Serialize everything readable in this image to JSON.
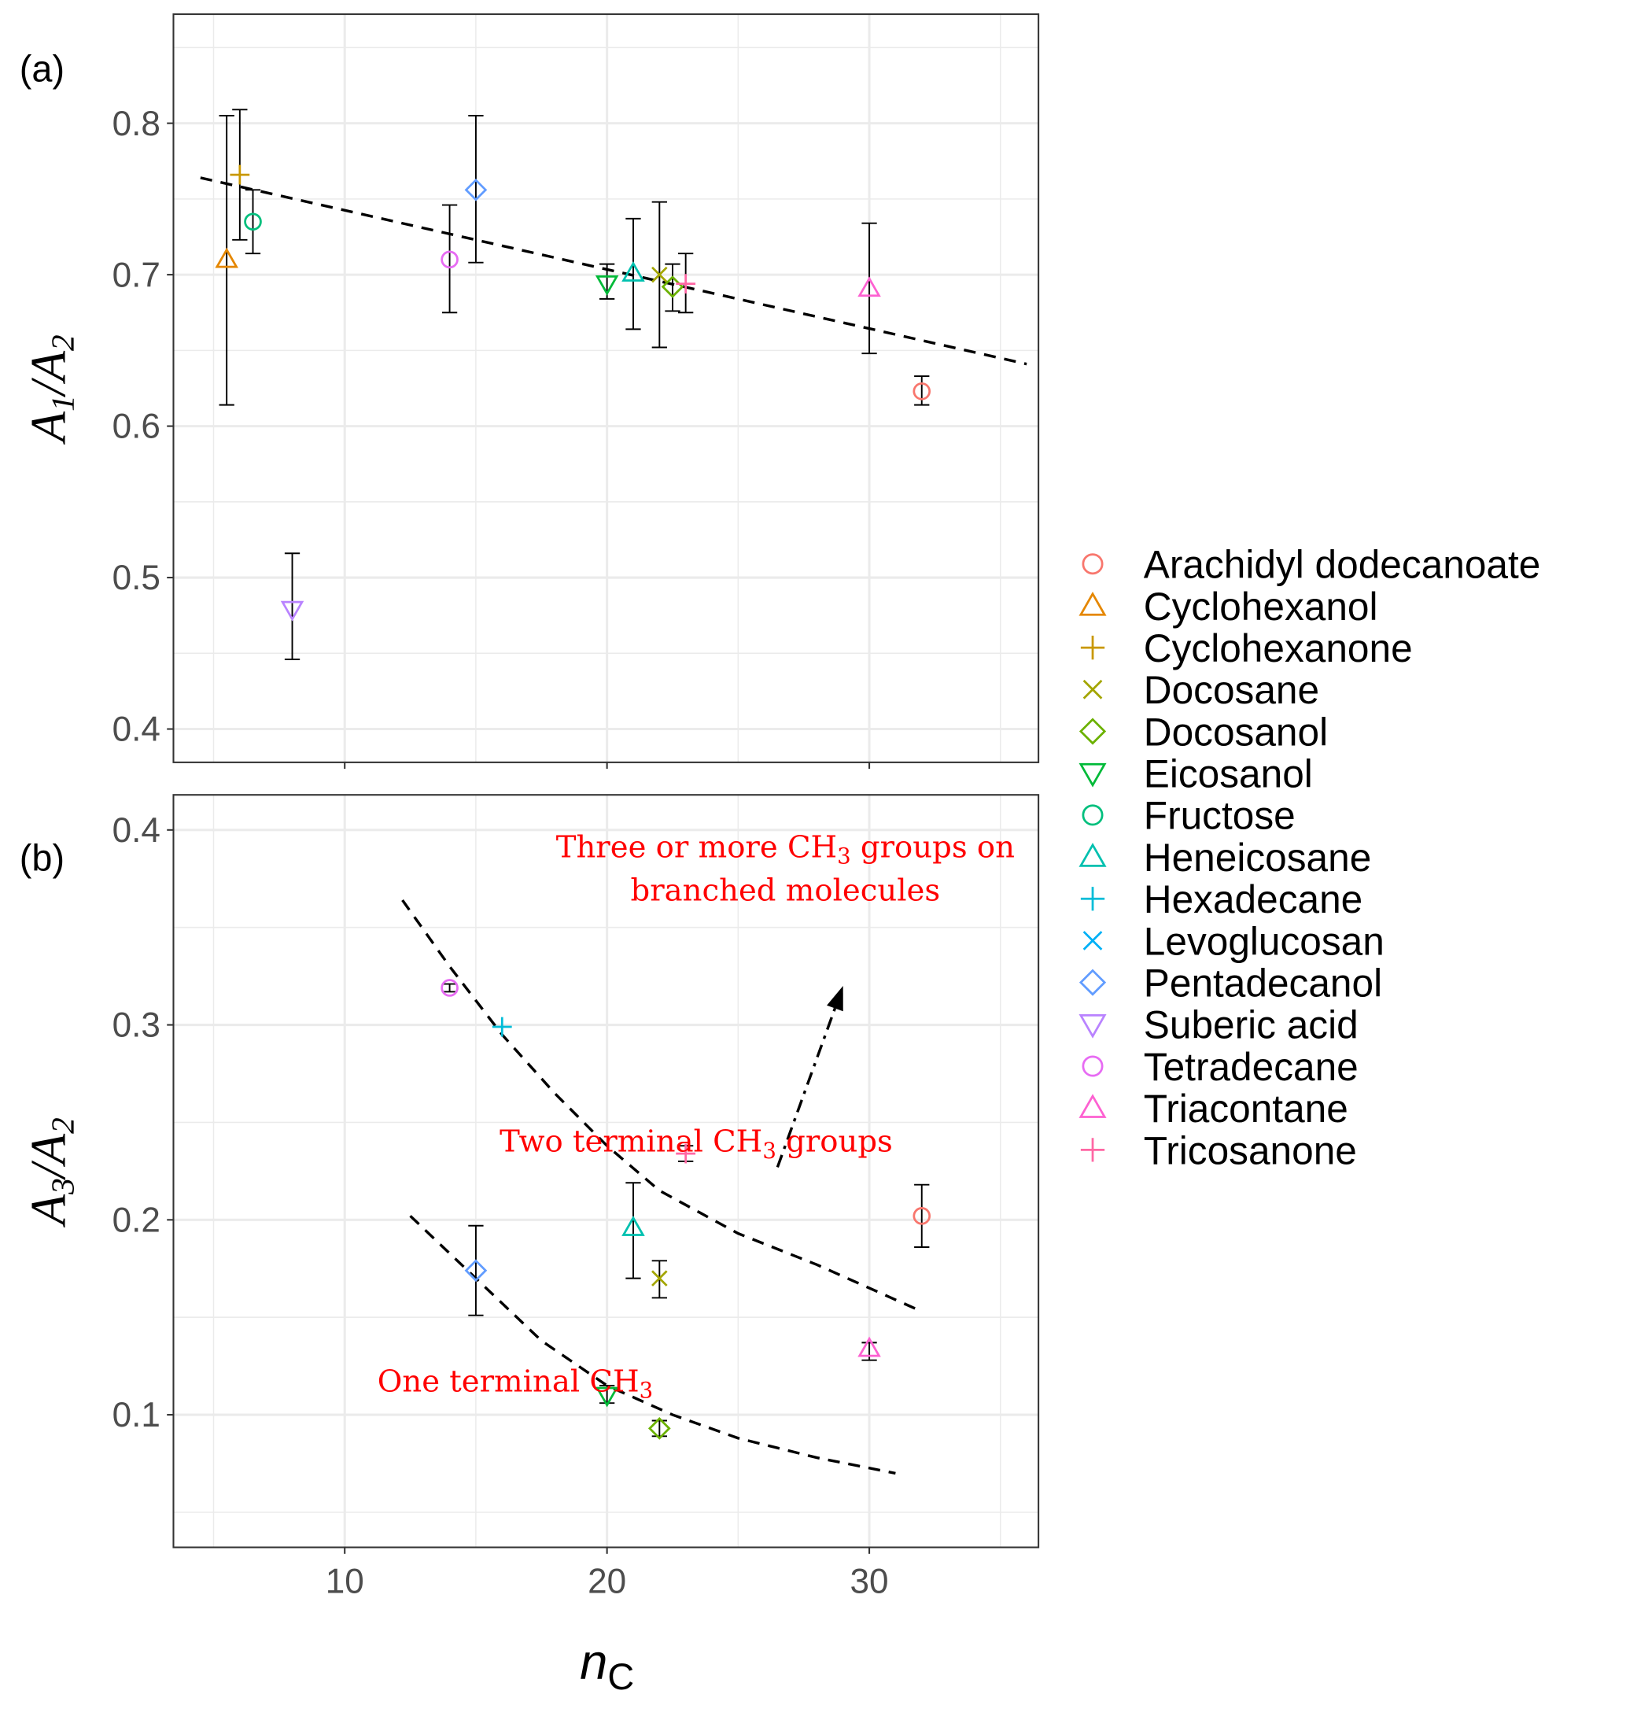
{
  "chart_data": {
    "type": "scatter",
    "xlabel": "nC",
    "xlim": [
      3.47,
      36.45
    ],
    "xticks": [
      10,
      20,
      30
    ],
    "grid": true,
    "legend_position": "right",
    "series": [
      {
        "name": "Arachidyl dodecanoate",
        "color": "#F8766D",
        "shape": "circle"
      },
      {
        "name": "Cyclohexanol",
        "color": "#E58700",
        "shape": "triangle"
      },
      {
        "name": "Cyclohexanone",
        "color": "#C99800",
        "shape": "plus"
      },
      {
        "name": "Docosane",
        "color": "#A3A500",
        "shape": "cross"
      },
      {
        "name": "Docosanol",
        "color": "#6BB100",
        "shape": "diamond"
      },
      {
        "name": "Eicosanol",
        "color": "#00BA38",
        "shape": "triangle-down"
      },
      {
        "name": "Fructose",
        "color": "#00BF7D",
        "shape": "circle"
      },
      {
        "name": "Heneicosane",
        "color": "#00C0AF",
        "shape": "triangle"
      },
      {
        "name": "Hexadecane",
        "color": "#00BCD8",
        "shape": "plus"
      },
      {
        "name": "Levoglucosan",
        "color": "#00B0F6",
        "shape": "cross"
      },
      {
        "name": "Pentadecanol",
        "color": "#619CFF",
        "shape": "diamond"
      },
      {
        "name": "Suberic acid",
        "color": "#B983FF",
        "shape": "triangle-down"
      },
      {
        "name": "Tetradecane",
        "color": "#E76BF3",
        "shape": "circle"
      },
      {
        "name": "Triacontane",
        "color": "#FD61D1",
        "shape": "triangle"
      },
      {
        "name": "Tricosanone",
        "color": "#FF67A4",
        "shape": "plus"
      }
    ],
    "panels": [
      {
        "label": "(a)",
        "ylabel": {
          "a": "A",
          "s1": "1",
          "b": "A",
          "s2": "2"
        },
        "ylim": [
          0.378,
          0.872
        ],
        "yticks": [
          0.4,
          0.5,
          0.6,
          0.7,
          0.8
        ],
        "ytick_labels": [
          "0.4",
          "0.5",
          "0.6",
          "0.7",
          "0.8"
        ],
        "points": [
          {
            "series": "Arachidyl dodecanoate",
            "x": 32,
            "y": 0.623,
            "ymin": 0.614,
            "ymax": 0.633
          },
          {
            "series": "Cyclohexanol",
            "x": 5.5,
            "y": 0.71,
            "ymin": 0.614,
            "ymax": 0.805
          },
          {
            "series": "Cyclohexanone",
            "x": 6,
            "y": 0.766,
            "ymin": 0.723,
            "ymax": 0.809
          },
          {
            "series": "Docosane",
            "x": 22,
            "y": 0.7,
            "ymin": 0.652,
            "ymax": 0.748
          },
          {
            "series": "Docosanol",
            "x": 22.5,
            "y": 0.692,
            "ymin": 0.676,
            "ymax": 0.707
          },
          {
            "series": "Eicosanol",
            "x": 20,
            "y": 0.694,
            "ymin": 0.684,
            "ymax": 0.707
          },
          {
            "series": "Fructose",
            "x": 6.5,
            "y": 0.735,
            "ymin": 0.714,
            "ymax": 0.756
          },
          {
            "series": "Heneicosane",
            "x": 21,
            "y": 0.701,
            "ymin": 0.664,
            "ymax": 0.737
          },
          {
            "series": "Pentadecanol",
            "x": 15,
            "y": 0.756,
            "ymin": 0.708,
            "ymax": 0.805
          },
          {
            "series": "Suberic acid",
            "x": 8,
            "y": 0.479,
            "ymin": 0.446,
            "ymax": 0.516
          },
          {
            "series": "Tetradecane",
            "x": 14,
            "y": 0.71,
            "ymin": 0.675,
            "ymax": 0.746
          },
          {
            "series": "Triacontane",
            "x": 30,
            "y": 0.691,
            "ymin": 0.648,
            "ymax": 0.734
          },
          {
            "series": "Tricosanone",
            "x": 23,
            "y": 0.694,
            "ymin": 0.675,
            "ymax": 0.714
          }
        ],
        "lines": [
          {
            "name": "linear-trend",
            "style": "dashed",
            "x": [
              4.5,
              36
            ],
            "y": [
              0.764,
              0.641
            ]
          }
        ],
        "annotations": []
      },
      {
        "label": "(b)",
        "ylabel": {
          "a": "A",
          "s1": "3",
          "b": "A",
          "s2": "2"
        },
        "ylim": [
          0.032,
          0.418
        ],
        "yticks": [
          0.1,
          0.2,
          0.3,
          0.4
        ],
        "ytick_labels": [
          "0.1",
          "0.2",
          "0.3",
          "0.4"
        ],
        "points": [
          {
            "series": "Tetradecane",
            "x": 14,
            "y": 0.319,
            "ymin": 0.317,
            "ymax": 0.321
          },
          {
            "series": "Hexadecane",
            "x": 16,
            "y": 0.299
          },
          {
            "series": "Tricosanone",
            "x": 23,
            "y": 0.234,
            "ymin": 0.23,
            "ymax": 0.238
          },
          {
            "series": "Heneicosane",
            "x": 21,
            "y": 0.196,
            "ymin": 0.17,
            "ymax": 0.219
          },
          {
            "series": "Docosane",
            "x": 22,
            "y": 0.17,
            "ymin": 0.16,
            "ymax": 0.179
          },
          {
            "series": "Arachidyl dodecanoate",
            "x": 32,
            "y": 0.202,
            "ymin": 0.186,
            "ymax": 0.218
          },
          {
            "series": "Pentadecanol",
            "x": 15,
            "y": 0.174,
            "ymin": 0.151,
            "ymax": 0.197
          },
          {
            "series": "Triacontane",
            "x": 30,
            "y": 0.134,
            "ymin": 0.128,
            "ymax": 0.137
          },
          {
            "series": "Eicosanol",
            "x": 20,
            "y": 0.11,
            "ymin": 0.106,
            "ymax": 0.115
          },
          {
            "series": "Docosanol",
            "x": 22,
            "y": 0.093,
            "ymin": 0.089,
            "ymax": 0.097
          }
        ],
        "lines": [
          {
            "name": "two-terminal-ch3-fit",
            "style": "dashed",
            "x": [
              12.2,
              14,
              16,
              18,
              20,
              22,
              25,
              28,
              32
            ],
            "y": [
              0.364,
              0.33,
              0.295,
              0.265,
              0.238,
              0.215,
              0.193,
              0.177,
              0.153
            ]
          },
          {
            "name": "one-terminal-ch3-fit",
            "style": "dashed",
            "x": [
              12.5,
              15,
              17.5,
              20,
              22.5,
              25,
              28,
              31
            ],
            "y": [
              0.202,
              0.17,
              0.138,
              0.115,
              0.1,
              0.088,
              0.078,
              0.07
            ]
          },
          {
            "name": "branched-arrow",
            "style": "dashdot-arrow",
            "x": [
              26.5,
              29
            ],
            "y": [
              0.227,
              0.32
            ]
          }
        ],
        "annotations": [
          {
            "lines": [
              [
                "Three or more CH",
                "3",
                " groups on"
              ],
              [
                "branched molecules",
                "",
                ""
              ]
            ],
            "x": 26.8,
            "y": 0.386
          },
          {
            "lines": [
              [
                "Two terminal CH",
                "3",
                " groups"
              ]
            ],
            "x": 23.4,
            "y": 0.235
          },
          {
            "lines": [
              [
                "One terminal CH",
                "3",
                ""
              ]
            ],
            "x": 16.5,
            "y": 0.112
          }
        ]
      }
    ]
  }
}
